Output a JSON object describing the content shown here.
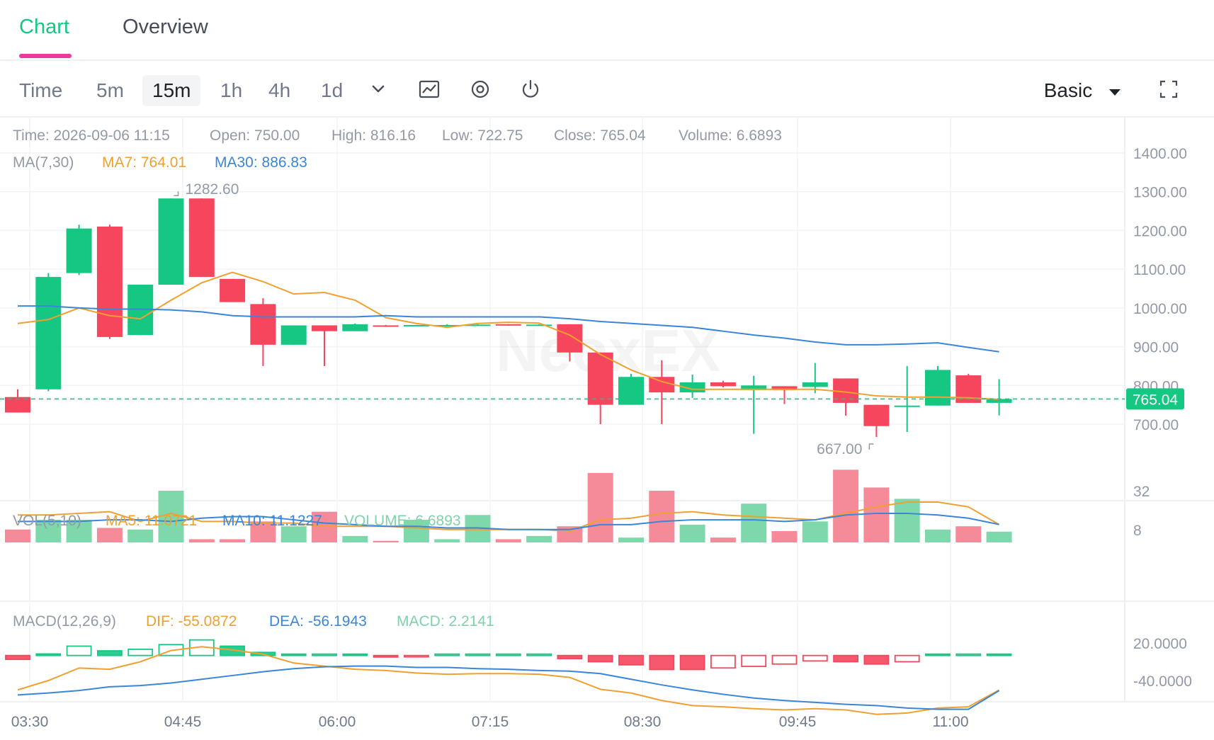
{
  "tabs": [
    {
      "label": "Chart",
      "active": true
    },
    {
      "label": "Overview",
      "active": false
    }
  ],
  "toolbar": {
    "timeframes": [
      "Time",
      "5m",
      "15m",
      "1h",
      "4h",
      "1d"
    ],
    "active_timeframe": "15m",
    "view_mode": "Basic",
    "icons": [
      "chevron-down-icon",
      "line-chart-icon",
      "target-icon",
      "power-icon",
      "fullscreen-icon"
    ]
  },
  "colors": {
    "up": "#16c784",
    "down": "#f6465d",
    "ma_short": "#f0a030",
    "ma_long": "#3a86d8",
    "accent": "#16c784",
    "tab_indicator": "#ee3a9c"
  },
  "info": {
    "time": "Time: 2026-09-06 11:15",
    "open": "Open: 750.00",
    "high": "High: 816.16",
    "low": "Low: 722.75",
    "close": "Close: 765.04",
    "volume": "Volume: 6.6893",
    "ma_label": "MA(7,30)",
    "ma7": "MA7: 764.01",
    "ma30": "MA30: 886.83",
    "vol_label": "VOL(5,10)",
    "vol_ma5": "MA5: 11.0721",
    "vol_ma10": "MA10: 11.1227",
    "vol_value": "VOLUME: 6.6893",
    "macd_label": "MACD(12,26,9)",
    "dif": "DIF: -55.0872",
    "dea": "DEA: -56.1943",
    "macd": "MACD: 2.2141"
  },
  "watermark": "NeoxEX",
  "chart_data": {
    "type": "candlestick",
    "price_axis": {
      "ticks": [
        "1400.00",
        "1300.00",
        "1200.00",
        "1100.00",
        "1000.00",
        "900.00",
        "800.00",
        "700.00"
      ],
      "range": [
        630,
        1450
      ]
    },
    "volume_axis": {
      "ticks": [
        "32",
        "8"
      ]
    },
    "macd_axis": {
      "ticks": [
        "20.0000",
        "-40.0000"
      ]
    },
    "time_axis": {
      "labels": [
        "03:30",
        "04:45",
        "06:00",
        "07:15",
        "08:30",
        "09:45",
        "11:00"
      ]
    },
    "last_price": "765.04",
    "high_marker": "1282.60",
    "low_marker": "667.00",
    "candles": [
      {
        "o": 770,
        "h": 790,
        "l": 730,
        "c": 730
      },
      {
        "o": 790,
        "h": 1090,
        "l": 785,
        "c": 1080
      },
      {
        "o": 1090,
        "h": 1215,
        "l": 1085,
        "c": 1205
      },
      {
        "o": 1210,
        "h": 1215,
        "l": 920,
        "c": 925
      },
      {
        "o": 930,
        "h": 1060,
        "l": 930,
        "c": 1060
      },
      {
        "o": 1060,
        "h": 1282.6,
        "l": 1060,
        "c": 1282.6
      },
      {
        "o": 1282.6,
        "h": 1282.6,
        "l": 1080,
        "c": 1080
      },
      {
        "o": 1075,
        "h": 1075,
        "l": 1015,
        "c": 1015
      },
      {
        "o": 1010,
        "h": 1025,
        "l": 850,
        "c": 905
      },
      {
        "o": 905,
        "h": 955,
        "l": 905,
        "c": 955
      },
      {
        "o": 955,
        "h": 955,
        "l": 850,
        "c": 940
      },
      {
        "o": 940,
        "h": 960,
        "l": 940,
        "c": 958
      },
      {
        "o": 955,
        "h": 956,
        "l": 953,
        "c": 953
      },
      {
        "o": 955,
        "h": 956,
        "l": 953,
        "c": 956
      },
      {
        "o": 955,
        "h": 958,
        "l": 953,
        "c": 956
      },
      {
        "o": 956,
        "h": 958,
        "l": 954,
        "c": 957
      },
      {
        "o": 958,
        "h": 958,
        "l": 954,
        "c": 955
      },
      {
        "o": 955,
        "h": 958,
        "l": 955,
        "c": 957
      },
      {
        "o": 958,
        "h": 958,
        "l": 862,
        "c": 885
      },
      {
        "o": 885,
        "h": 885,
        "l": 700,
        "c": 750
      },
      {
        "o": 750,
        "h": 830,
        "l": 750,
        "c": 822
      },
      {
        "o": 822,
        "h": 865,
        "l": 700,
        "c": 782
      },
      {
        "o": 782,
        "h": 828,
        "l": 768,
        "c": 808
      },
      {
        "o": 808,
        "h": 812,
        "l": 795,
        "c": 798
      },
      {
        "o": 788,
        "h": 825,
        "l": 675,
        "c": 800
      },
      {
        "o": 798,
        "h": 798,
        "l": 752,
        "c": 788
      },
      {
        "o": 796,
        "h": 858,
        "l": 780,
        "c": 808
      },
      {
        "o": 818,
        "h": 818,
        "l": 722,
        "c": 755
      },
      {
        "o": 750,
        "h": 750,
        "l": 667,
        "c": 695
      },
      {
        "o": 745,
        "h": 850,
        "l": 680,
        "c": 748
      },
      {
        "o": 748,
        "h": 850,
        "l": 748,
        "c": 840
      },
      {
        "o": 826,
        "h": 830,
        "l": 755,
        "c": 755
      },
      {
        "o": 755,
        "h": 816.16,
        "l": 722.75,
        "c": 765.04
      }
    ],
    "ma7": [
      960,
      970,
      1000,
      980,
      972,
      1020,
      1065,
      1092,
      1068,
      1036,
      1040,
      1020,
      975,
      960,
      950,
      960,
      963,
      961,
      930,
      880,
      840,
      810,
      790,
      790,
      790,
      790,
      790,
      783,
      773,
      770,
      770,
      768,
      764.01
    ],
    "ma30": [
      1005,
      1005,
      1000,
      997,
      997,
      995,
      990,
      980,
      977,
      977,
      977,
      977,
      980,
      977,
      977,
      977,
      977,
      977,
      972,
      965,
      960,
      955,
      950,
      940,
      930,
      922,
      912,
      905,
      905,
      907,
      910,
      898,
      886.83
    ],
    "volumes": [
      8,
      14,
      14,
      9,
      8,
      32,
      2,
      2,
      13,
      10,
      19,
      4,
      1,
      14,
      2,
      17,
      2,
      4,
      10,
      43,
      3,
      32,
      11,
      3,
      24,
      7,
      13,
      45,
      34,
      27,
      8,
      10,
      6.6893
    ],
    "vol_ma5": [
      17,
      17,
      18,
      19,
      13,
      18,
      13,
      13,
      12,
      12,
      10,
      10,
      10,
      9,
      8,
      8,
      8,
      8,
      7,
      14,
      15,
      18,
      19,
      17,
      16,
      15,
      14,
      18,
      22,
      25,
      25,
      22,
      11.0721
    ],
    "vol_ma10": [
      13,
      13,
      13,
      14,
      14,
      13,
      15,
      16,
      16,
      14,
      12,
      11,
      10,
      10,
      9,
      9,
      8,
      8,
      8,
      11,
      11,
      13,
      14,
      14,
      14,
      13,
      14,
      17,
      18,
      18,
      17,
      15,
      11.1227
    ],
    "macd_hist": [
      -25,
      10,
      60,
      30,
      40,
      70,
      100,
      60,
      20,
      5,
      5,
      2,
      -10,
      -5,
      5,
      5,
      5,
      8,
      -20,
      -40,
      -60,
      -90,
      -90,
      -80,
      -70,
      -55,
      -35,
      -40,
      -55,
      -40,
      3,
      3,
      2.2141
    ],
    "dif": [
      -55,
      -40,
      -20,
      -22,
      -10,
      8,
      14,
      9,
      2,
      -12,
      -17,
      -22,
      -24,
      -28,
      -30,
      -29,
      -29,
      -30,
      -35,
      -54,
      -60,
      -72,
      -80,
      -82,
      -85,
      -87,
      -85,
      -87,
      -94,
      -92,
      -84,
      -82,
      -55.0872
    ],
    "dea": [
      -63,
      -60,
      -56,
      -50,
      -48,
      -44,
      -38,
      -32,
      -26,
      -21,
      -18,
      -17,
      -17,
      -19,
      -19,
      -21,
      -22,
      -24,
      -25,
      -29,
      -38,
      -47,
      -55,
      -62,
      -68,
      -72,
      -75,
      -78,
      -80,
      -84,
      -86,
      -86,
      -56.1943
    ]
  }
}
